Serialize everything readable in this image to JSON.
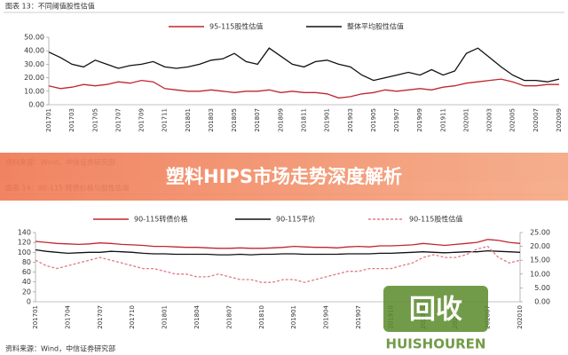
{
  "chart_data": [
    {
      "type": "line",
      "title": "图表 13：不同阈值股性估值",
      "categories": [
        "201701",
        null,
        "201703",
        null,
        "201705",
        null,
        "201707",
        null,
        "201709",
        null,
        "201711",
        null,
        "201801",
        null,
        "201803",
        null,
        "201805",
        null,
        "201807",
        null,
        "201809",
        null,
        "201811",
        null,
        "201901",
        null,
        "201903",
        null,
        "201905",
        null,
        "201907",
        null,
        "201909",
        null,
        "201911",
        null,
        "202001",
        null,
        "202003",
        null,
        "202005",
        null,
        "202007",
        null,
        "202009"
      ],
      "series": [
        {
          "name": "95-115股性估值",
          "color": "#c0262d",
          "values": [
            14,
            12,
            13,
            15,
            14,
            15,
            17,
            16,
            18,
            17,
            12,
            11,
            10,
            10,
            11,
            10,
            9,
            10,
            10,
            11,
            9,
            10,
            9,
            9,
            8,
            5,
            6,
            8,
            9,
            11,
            10,
            11,
            12,
            11,
            13,
            14,
            16,
            17,
            18,
            19,
            17,
            14,
            14,
            15,
            15
          ]
        },
        {
          "name": "整体平均股性估值",
          "color": "#111111",
          "values": [
            39,
            35,
            30,
            28,
            33,
            30,
            27,
            29,
            30,
            32,
            28,
            27,
            28,
            30,
            33,
            34,
            38,
            32,
            30,
            42,
            36,
            30,
            28,
            32,
            33,
            30,
            28,
            22,
            18,
            20,
            22,
            24,
            22,
            26,
            22,
            25,
            38,
            42,
            35,
            28,
            22,
            18,
            18,
            17,
            19
          ]
        }
      ],
      "ylim": [
        0,
        50
      ],
      "yticks": [
        {
          "value": 0,
          "label": "0.00"
        },
        {
          "value": 10,
          "label": "10.00"
        },
        {
          "value": 20,
          "label": "20.00"
        },
        {
          "value": 30,
          "label": "30.00"
        },
        {
          "value": 40,
          "label": "40.00"
        },
        {
          "value": 50,
          "label": "50.00"
        }
      ],
      "source": "资料来源：Wind，中信证券研究部"
    },
    {
      "type": "line",
      "title": "图表 14：90-115 转债价格与股性估值",
      "categories": [
        "201701",
        null,
        null,
        "201704",
        null,
        null,
        "201707",
        null,
        null,
        "201710",
        null,
        null,
        "201801",
        null,
        null,
        "201804",
        null,
        null,
        "201807",
        null,
        null,
        "201810",
        null,
        null,
        "201901",
        null,
        null,
        "201904",
        null,
        null,
        "201907",
        null,
        null,
        "201910",
        null,
        null,
        "202001",
        null,
        null,
        "202004",
        null,
        null,
        "202007",
        null,
        null,
        "202010"
      ],
      "series": [
        {
          "name": "90-115转债价格",
          "color": "#c0262d",
          "values": [
            122,
            120,
            118,
            117,
            116,
            117,
            119,
            118,
            116,
            115,
            114,
            112,
            112,
            111,
            110,
            110,
            109,
            108,
            108,
            109,
            108,
            108,
            109,
            110,
            112,
            111,
            110,
            110,
            109,
            111,
            112,
            111,
            113,
            113,
            114,
            115,
            118,
            116,
            114,
            116,
            118,
            120,
            126,
            124,
            120,
            118
          ]
        },
        {
          "name": "90-115平价",
          "color": "#111111",
          "values": [
            105,
            102,
            100,
            98,
            99,
            100,
            100,
            102,
            101,
            100,
            98,
            97,
            97,
            96,
            96,
            96,
            96,
            95,
            95,
            96,
            95,
            96,
            96,
            97,
            97,
            96,
            96,
            96,
            96,
            97,
            97,
            97,
            98,
            98,
            99,
            100,
            101,
            100,
            99,
            100,
            101,
            101,
            103,
            102,
            101,
            100
          ]
        },
        {
          "name": "90-115股性估值",
          "color": "#e07a86",
          "dashed": true,
          "axis": "y2",
          "values": [
            15,
            13,
            12,
            13,
            14,
            15,
            16,
            15,
            14,
            13,
            12,
            12,
            11,
            10,
            10,
            9,
            9,
            10,
            9,
            8,
            8,
            7,
            7,
            8,
            8,
            7,
            8,
            9,
            10,
            11,
            11,
            12,
            12,
            12,
            13,
            14,
            16,
            17,
            16,
            16,
            17,
            19,
            20,
            16,
            14,
            15
          ]
        }
      ],
      "ylim": [
        0,
        140
      ],
      "yticks": [
        0,
        20,
        40,
        60,
        80,
        100,
        120,
        140
      ],
      "y2lim": [
        0,
        25
      ],
      "y2ticks": [
        {
          "value": 0,
          "label": "0.00"
        },
        {
          "value": 5,
          "label": "5.00"
        },
        {
          "value": 10,
          "label": "10.00"
        },
        {
          "value": 15,
          "label": "15.00"
        },
        {
          "value": 20,
          "label": "20.00"
        },
        {
          "value": 25,
          "label": "25.00"
        }
      ],
      "source": "资料来源：Wind，中信证券研究部"
    }
  ],
  "banner": {
    "title": "塑料HIPS市场走势深度解析"
  },
  "watermark": {
    "logo": "回收",
    "brand": "HUISHOUREN"
  }
}
